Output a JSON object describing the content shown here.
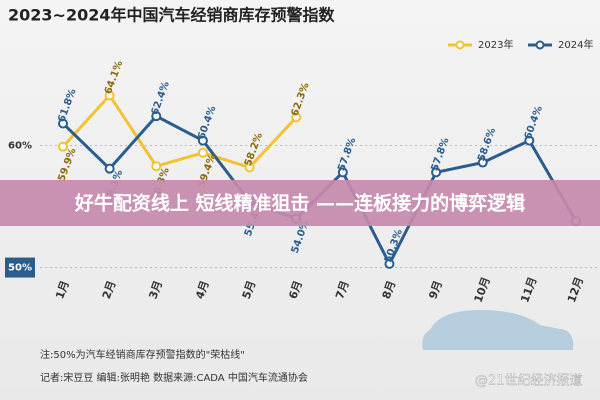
{
  "chart_data": {
    "type": "line",
    "title": "2023~2024年中国汽车经销商库存预警指数",
    "categories": [
      "1月",
      "2月",
      "3月",
      "4月",
      "5月",
      "6月",
      "7月",
      "8月",
      "9月",
      "10月",
      "11月",
      "12月"
    ],
    "series": [
      {
        "name": "2023年",
        "color": "#f2c230",
        "values": [
          59.9,
          64.1,
          58.3,
          59.4,
          58.2,
          62.3,
          null,
          null,
          null,
          null,
          null,
          null
        ],
        "value_labels": [
          "59.9%",
          "64.1%",
          "58.3%",
          "59.4%",
          "58.2%",
          "62.3%",
          null,
          null,
          null,
          null,
          null,
          null
        ]
      },
      {
        "name": "2024年",
        "color": "#2b5d8c",
        "values": [
          61.8,
          58.1,
          62.4,
          60.4,
          55.4,
          54.0,
          57.8,
          50.3,
          57.8,
          58.6,
          60.4,
          53.8
        ],
        "value_labels": [
          "61.8%",
          "58.1%",
          "62.4%",
          "60.4%",
          "55.4%",
          "54.0%",
          "57.8%",
          "50.3%",
          "57.8%",
          "58.6%",
          "60.4%",
          null
        ]
      }
    ],
    "ylim": [
      49.8,
      67
    ],
    "yticks": [
      {
        "value": 50,
        "label": "50%"
      },
      {
        "value": 60,
        "label": "60%"
      }
    ],
    "grid": true,
    "legend": "top-right",
    "notes": [
      "注:50%为汽车经销商库存预警指数的\"荣枯线\"",
      "记者:宋豆豆  编辑:张明艳  数据来源:CADA 中国汽车流通协会"
    ],
    "watermark": "@21世纪经济报道",
    "banner": "好牛配资线上 短线精准狙击 ——连板接力的博弈逻辑"
  }
}
